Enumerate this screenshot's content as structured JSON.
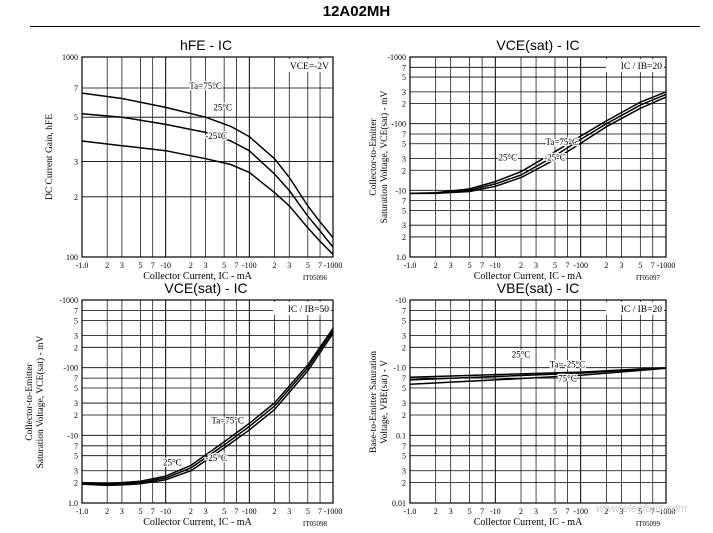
{
  "document": {
    "title": "12A02MH",
    "watermark": "www.elecfans.com"
  },
  "chart_data": [
    {
      "id": "hfe",
      "type": "line",
      "title": "hFE - IC",
      "xlabel": "Collector Current, IC - mA",
      "ylabel": "DC Current Gain, hFE",
      "xscale": "log",
      "yscale": "log",
      "xlim": [
        -1.0,
        -1000
      ],
      "ylim": [
        100,
        1000
      ],
      "x_ticks": [
        "-1.0",
        "2",
        "3",
        "5",
        "7",
        "-10",
        "2",
        "3",
        "5",
        "7",
        "-100",
        "2",
        "3",
        "5",
        "7",
        "-1000"
      ],
      "y_ticks": [
        [
          "100",
          100
        ],
        [
          "2",
          200
        ],
        [
          "3",
          300
        ],
        [
          "5",
          500
        ],
        [
          "7",
          700
        ],
        [
          "1000",
          1000
        ]
      ],
      "condition": "VCE=-2V",
      "figure_id": "IT05096",
      "series": [
        {
          "name": "Ta=75°C",
          "x": [
            1,
            3,
            10,
            30,
            60,
            100,
            200,
            300,
            500,
            700,
            1000
          ],
          "y": [
            660,
            620,
            560,
            500,
            450,
            400,
            310,
            250,
            180,
            150,
            125
          ]
        },
        {
          "name": "25°C",
          "x": [
            1,
            3,
            10,
            30,
            60,
            100,
            200,
            300,
            500,
            700,
            1000
          ],
          "y": [
            520,
            500,
            460,
            420,
            380,
            340,
            260,
            215,
            160,
            135,
            112
          ]
        },
        {
          "name": "-25°C",
          "x": [
            1,
            3,
            10,
            30,
            60,
            100,
            200,
            300,
            500,
            700,
            1000
          ],
          "y": [
            380,
            360,
            340,
            310,
            290,
            265,
            210,
            180,
            140,
            120,
            103
          ]
        }
      ],
      "annotations": [
        {
          "text": "Ta=75°C",
          "x": 30,
          "y": 690
        },
        {
          "text": "25°C",
          "x": 48,
          "y": 540
        },
        {
          "text": "-25°C",
          "x": 40,
          "y": 390
        }
      ]
    },
    {
      "id": "vcesat20",
      "type": "line",
      "title": "VCE(sat) - IC",
      "xlabel": "Collector Current, IC - mA",
      "ylabel": "Collector-to-Emitter Saturation Voltage, VCE(sat) - mV",
      "xscale": "log",
      "yscale": "log",
      "xlim": [
        -1.0,
        -1000
      ],
      "ylim": [
        1,
        1000
      ],
      "x_ticks": [
        "-1.0",
        "2",
        "3",
        "5",
        "7",
        "-10",
        "2",
        "3",
        "5",
        "7",
        "-100",
        "2",
        "3",
        "5",
        "7",
        "-1000"
      ],
      "y_ticks": [
        [
          "1.0",
          1
        ],
        [
          "2",
          2
        ],
        [
          "3",
          3
        ],
        [
          "5",
          5
        ],
        [
          "7",
          7
        ],
        [
          "-10",
          10
        ],
        [
          "2",
          20
        ],
        [
          "3",
          30
        ],
        [
          "5",
          50
        ],
        [
          "7",
          70
        ],
        [
          "-100",
          100
        ],
        [
          "2",
          200
        ],
        [
          "3",
          300
        ],
        [
          "5",
          500
        ],
        [
          "7",
          700
        ],
        [
          "-1000",
          1000
        ]
      ],
      "condition": "IC / IB=20",
      "figure_id": "IT05097",
      "series": [
        {
          "name": "Ta=75°C",
          "x": [
            1,
            2,
            5,
            10,
            20,
            50,
            100,
            200,
            500,
            1000
          ],
          "y": [
            9,
            9.2,
            10.5,
            13.5,
            19,
            38,
            65,
            110,
            210,
            300
          ]
        },
        {
          "name": "25°C",
          "x": [
            1,
            2,
            5,
            10,
            20,
            50,
            100,
            200,
            500,
            1000
          ],
          "y": [
            9,
            9.1,
            10,
            12.5,
            17,
            33,
            58,
            100,
            190,
            275
          ]
        },
        {
          "name": "-25°C",
          "x": [
            1,
            2,
            5,
            10,
            20,
            50,
            100,
            200,
            500,
            1000
          ],
          "y": [
            9,
            9,
            9.6,
            11.5,
            15.5,
            29,
            51,
            90,
            170,
            250
          ]
        }
      ],
      "annotations": [
        {
          "text": "Ta=75°C",
          "x": 60,
          "y": 48
        },
        {
          "text": "25°C",
          "x": 14,
          "y": 28
        },
        {
          "text": "-25°C",
          "x": 50,
          "y": 28
        }
      ]
    },
    {
      "id": "vcesat50",
      "type": "line",
      "title": "VCE(sat) - IC",
      "xlabel": "Collector Current, IC - mA",
      "ylabel": "Collector-to-Emitter Saturation Voltage, VCE(sat) - mV",
      "xscale": "log",
      "yscale": "log",
      "xlim": [
        -1.0,
        -1000
      ],
      "ylim": [
        1,
        1000
      ],
      "x_ticks": [
        "-1.0",
        "2",
        "3",
        "5",
        "7",
        "-10",
        "2",
        "3",
        "5",
        "7",
        "-100",
        "2",
        "3",
        "5",
        "7",
        "-1000"
      ],
      "y_ticks": [
        [
          "1.0",
          1
        ],
        [
          "2",
          2
        ],
        [
          "3",
          3
        ],
        [
          "5",
          5
        ],
        [
          "7",
          7
        ],
        [
          "-10",
          10
        ],
        [
          "2",
          20
        ],
        [
          "3",
          30
        ],
        [
          "5",
          50
        ],
        [
          "7",
          70
        ],
        [
          "-100",
          100
        ],
        [
          "2",
          200
        ],
        [
          "3",
          300
        ],
        [
          "5",
          500
        ],
        [
          "7",
          700
        ],
        [
          "-1000",
          1000
        ]
      ],
      "condition": "IC / IB=50",
      "figure_id": "IT05098",
      "series": [
        {
          "name": "Ta=75°C",
          "x": [
            1,
            2,
            3,
            5,
            10,
            20,
            50,
            100,
            200,
            500,
            1000
          ],
          "y": [
            2,
            1.95,
            2,
            2.1,
            2.5,
            3.6,
            8,
            15,
            30,
            110,
            380
          ]
        },
        {
          "name": "25°C",
          "x": [
            1,
            2,
            3,
            5,
            10,
            20,
            50,
            100,
            200,
            500,
            1000
          ],
          "y": [
            1.95,
            1.88,
            1.9,
            2.0,
            2.35,
            3.3,
            7.2,
            13.5,
            27,
            100,
            350
          ]
        },
        {
          "name": "-25°C",
          "x": [
            1,
            2,
            3,
            5,
            10,
            20,
            50,
            100,
            200,
            500,
            1000
          ],
          "y": [
            1.9,
            1.82,
            1.85,
            1.93,
            2.2,
            3.0,
            6.5,
            12,
            24,
            90,
            320
          ]
        }
      ],
      "annotations": [
        {
          "text": "Ta=75°C",
          "x": 55,
          "y": 15
        },
        {
          "text": "25°C",
          "x": 12,
          "y": 3.6
        },
        {
          "text": "-25°C",
          "x": 40,
          "y": 4.2
        }
      ]
    },
    {
      "id": "vbesat",
      "type": "line",
      "title": "VBE(sat) - IC",
      "xlabel": "Collector Current, IC - mA",
      "ylabel": "Base-to-Emitter Saturation Voltage, VBE(sat) - V",
      "xscale": "log",
      "yscale": "log",
      "xlim": [
        -1.0,
        -1000
      ],
      "ylim": [
        0.01,
        10
      ],
      "x_ticks": [
        "-1.0",
        "2",
        "3",
        "5",
        "7",
        "-10",
        "2",
        "3",
        "5",
        "7",
        "-100",
        "2",
        "3",
        "5",
        "7",
        "-1000"
      ],
      "y_ticks": [
        [
          "0.01",
          0.01
        ],
        [
          "2",
          0.02
        ],
        [
          "3",
          0.03
        ],
        [
          "5",
          0.05
        ],
        [
          "7",
          0.07
        ],
        [
          "0.1",
          0.1
        ],
        [
          "2",
          0.2
        ],
        [
          "3",
          0.3
        ],
        [
          "5",
          0.5
        ],
        [
          "7",
          0.7
        ],
        [
          "-1.0",
          1
        ],
        [
          "2",
          2
        ],
        [
          "3",
          3
        ],
        [
          "5",
          5
        ],
        [
          "7",
          7
        ],
        [
          "-10",
          10
        ]
      ],
      "condition": "IC / IB=20",
      "figure_id": "IT05099",
      "series": [
        {
          "name": "25°C",
          "x": [
            1,
            10,
            100,
            1000
          ],
          "y": [
            0.72,
            0.79,
            0.86,
            1.0
          ]
        },
        {
          "name": "Ta=-25°C",
          "x": [
            1,
            10,
            100,
            1000
          ],
          "y": [
            0.66,
            0.74,
            0.83,
            0.99
          ]
        },
        {
          "name": "75°C",
          "x": [
            1,
            10,
            100,
            1000
          ],
          "y": [
            0.57,
            0.66,
            0.77,
            0.98
          ]
        }
      ],
      "annotations": [
        {
          "text": "25°C",
          "x": 20,
          "y": 1.42
        },
        {
          "text": "Ta=-25°C",
          "x": 70,
          "y": 1.0
        },
        {
          "text": "75°C",
          "x": 70,
          "y": 0.62
        }
      ]
    }
  ]
}
